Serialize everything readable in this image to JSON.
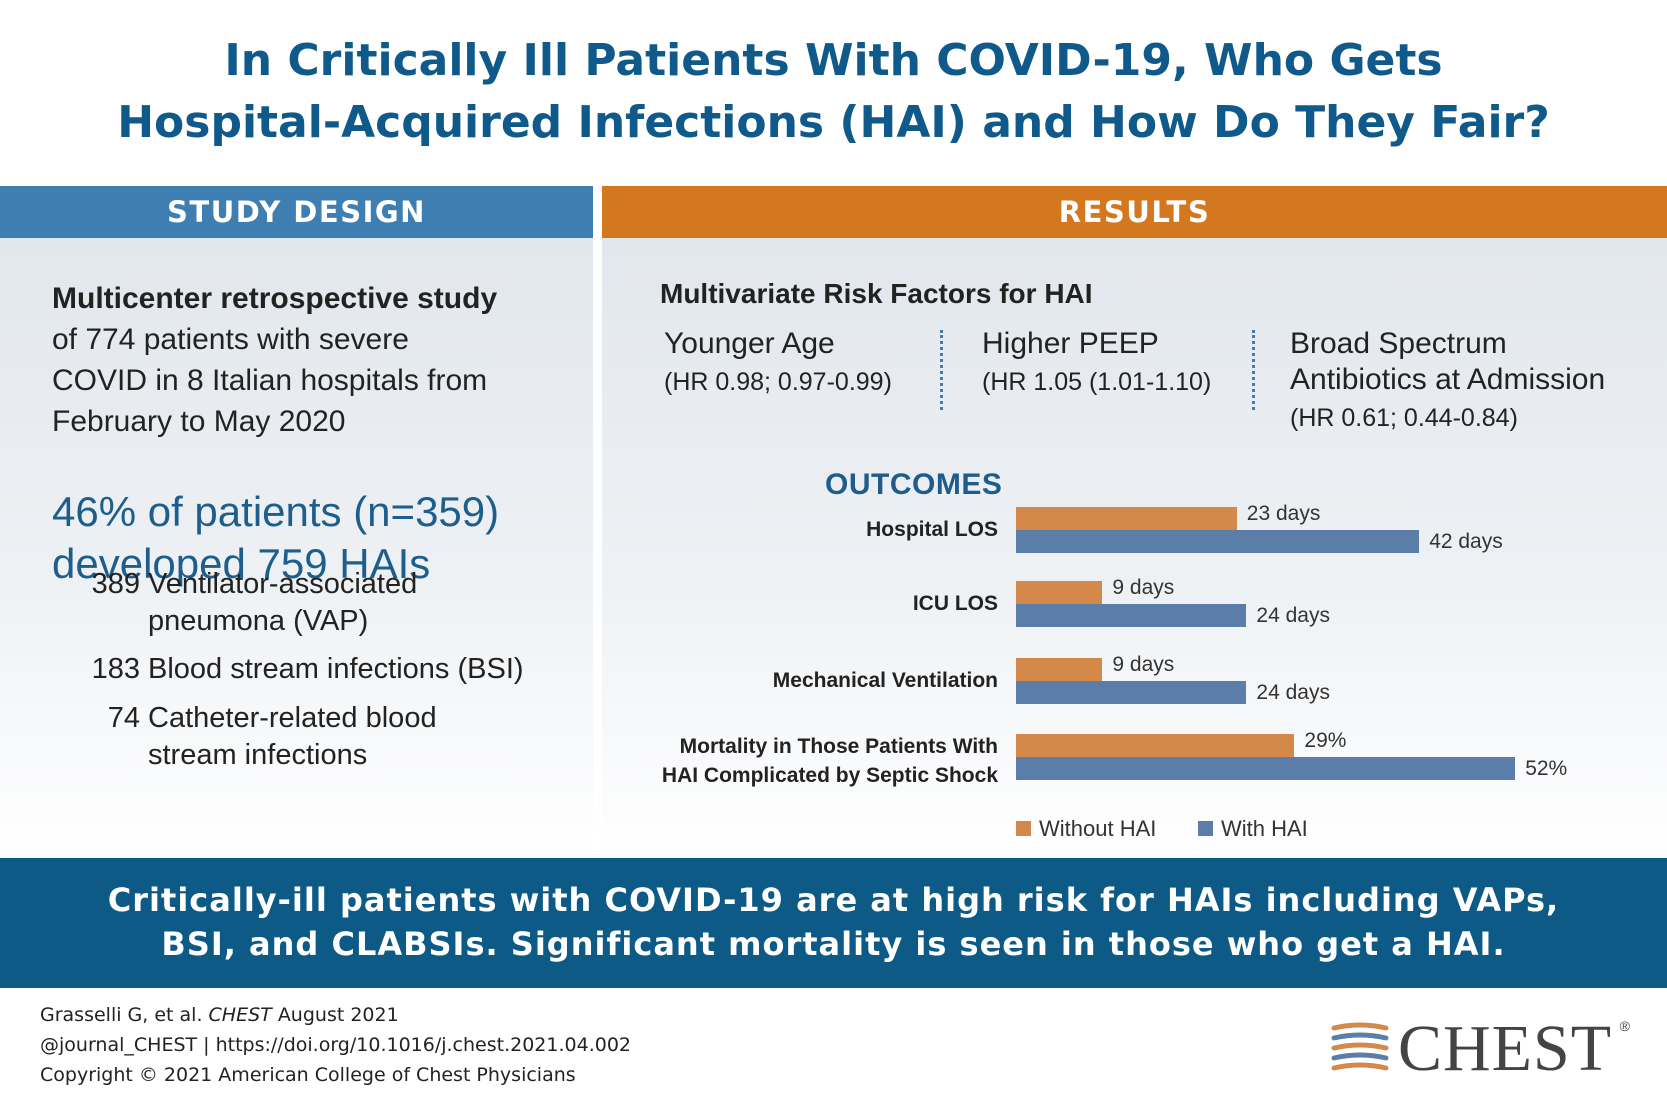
{
  "title": {
    "line1": "In Critically Ill Patients With COVID-19, Who Gets",
    "line2": "Hospital-Acquired Infections (HAI) and How Do They Fair?"
  },
  "study_design": {
    "header": "STUDY DESIGN",
    "intro_bold": "Multicenter retrospective study",
    "intro_lines": [
      "of 774 patients with severe",
      "COVID in 8 Italian hospitals from",
      "February to May 2020"
    ],
    "highlight_lines": [
      "46% of patients (n=359)",
      "developed 759 HAIs"
    ],
    "hai_types": [
      {
        "count": "389",
        "lines": [
          "Ventilator-associated",
          "pneumona (VAP)"
        ]
      },
      {
        "count": "183",
        "lines": [
          "Blood stream infections (BSI)"
        ]
      },
      {
        "count": "74",
        "lines": [
          "Catheter-related blood",
          "stream infections"
        ]
      }
    ]
  },
  "results": {
    "header": "RESULTS",
    "risk_title": "Multivariate Risk Factors for HAI",
    "risk_factors": [
      {
        "name_lines": [
          "Younger Age"
        ],
        "hr": "(HR 0.98; 0.97-0.99)"
      },
      {
        "name_lines": [
          "Higher PEEP"
        ],
        "hr": "(HR 1.05 (1.01-1.10)"
      },
      {
        "name_lines": [
          "Broad Spectrum",
          "Antibiotics at Admission"
        ],
        "hr": "(HR 0.61; 0.44-0.84)"
      }
    ],
    "outcomes_label": "OUTCOMES"
  },
  "chart_data": {
    "type": "bar",
    "orientation": "horizontal",
    "categories": [
      "Hospital LOS",
      "ICU LOS",
      "Mechanical Ventilation",
      "Mortality in Those Patients With HAI Complicated by Septic Shock"
    ],
    "category_lines": [
      [
        "Hospital LOS"
      ],
      [
        "ICU LOS"
      ],
      [
        "Mechanical Ventilation"
      ],
      [
        "Mortality in Those Patients With",
        "HAI Complicated by Septic Shock"
      ]
    ],
    "series": [
      {
        "name": "Without HAI",
        "color": "#d4894a",
        "values": [
          23,
          9,
          9,
          29
        ],
        "labels": [
          "23 days",
          "9 days",
          "9 days",
          "29%"
        ]
      },
      {
        "name": "With HAI",
        "color": "#5a7ea8",
        "values": [
          42,
          24,
          24,
          52
        ],
        "labels": [
          "42 days",
          "24 days",
          "24 days",
          "52%"
        ]
      }
    ],
    "legend_position": "bottom"
  },
  "conclusion": {
    "lines": [
      "Critically-ill patients with COVID-19 are at high risk for HAIs including VAPs,",
      "BSI, and CLABSIs. Significant mortality is seen in those who get a HAI."
    ]
  },
  "citation": {
    "authors": "Grasselli G, et al.",
    "journal": "CHEST",
    "date": "August 2021",
    "line2": "@journal_CHEST | https://doi.org/10.1016/j.chest.2021.04.002",
    "line3": "Copyright © 2021 American College of Chest Physicians"
  },
  "logo": {
    "text": "CHEST",
    "mark": "®"
  },
  "colors": {
    "title_blue": "#0f5a8a",
    "header_blue": "#3f7eb0",
    "header_orange": "#d4781f",
    "footer_blue": "#0e5a86"
  }
}
